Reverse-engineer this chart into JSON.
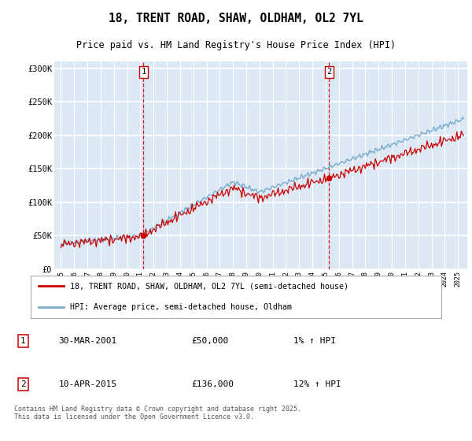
{
  "title": "18, TRENT ROAD, SHAW, OLDHAM, OL2 7YL",
  "subtitle": "Price paid vs. HM Land Registry's House Price Index (HPI)",
  "legend_line1": "18, TRENT ROAD, SHAW, OLDHAM, OL2 7YL (semi-detached house)",
  "legend_line2": "HPI: Average price, semi-detached house, Oldham",
  "annotation1": {
    "num": "1",
    "date": "30-MAR-2001",
    "price": "£50,000",
    "pct": "1% ↑ HPI"
  },
  "annotation2": {
    "num": "2",
    "date": "10-APR-2015",
    "price": "£136,000",
    "pct": "12% ↑ HPI"
  },
  "footer": "Contains HM Land Registry data © Crown copyright and database right 2025.\nThis data is licensed under the Open Government Licence v3.0.",
  "plot_bg_color": "#dce9f5",
  "line_color_red": "#cc0000",
  "line_color_blue": "#7aaacc",
  "vline_color": "#cc0000",
  "grid_color": "#ffffff",
  "ylim": [
    0,
    310000
  ],
  "yticks": [
    0,
    50000,
    100000,
    150000,
    200000,
    250000,
    300000
  ],
  "ytick_labels": [
    "£0",
    "£50K",
    "£100K",
    "£150K",
    "£200K",
    "£250K",
    "£300K"
  ],
  "xmin": 1994.5,
  "xmax": 2025.7,
  "marker1_x": 2001.24,
  "marker1_y": 50000,
  "marker2_x": 2015.27,
  "marker2_y": 136000
}
